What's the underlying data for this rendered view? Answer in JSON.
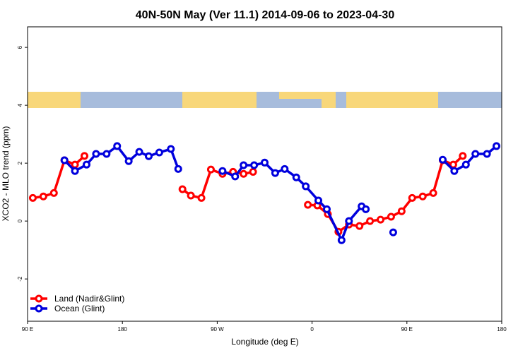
{
  "chart_data": {
    "type": "line",
    "title": "40N-50N May (Ver 11.1)   2014-09-06 to 2023-04-30",
    "x_label": "Longitude (deg E)",
    "y_label": "XCO2 - MLO trend (ppm)",
    "xlim": [
      90,
      540
    ],
    "xticks": [
      {
        "value": 90,
        "label": "90 E"
      },
      {
        "value": 180,
        "label": "180"
      },
      {
        "value": 270,
        "label": "90 W"
      },
      {
        "value": 360,
        "label": "0"
      },
      {
        "value": 450,
        "label": "90 E"
      },
      {
        "value": 540,
        "label": "180"
      }
    ],
    "ylim": [
      -3.46,
      6.71
    ],
    "yticks": [
      -2,
      0,
      2,
      4,
      6
    ],
    "legend": "bottom-left",
    "series": [
      {
        "name": "Land (Nadir&Glint)",
        "color": "#ff0000",
        "x": [
          95,
          105,
          115,
          125,
          135,
          144,
          null,
          237,
          245,
          255,
          264,
          275,
          285,
          295,
          304,
          null,
          356,
          365,
          375,
          385,
          395,
          405,
          415,
          425,
          435,
          445,
          455,
          465,
          475,
          484,
          494,
          503
        ],
        "values": [
          0.8,
          0.85,
          0.97,
          2.1,
          1.95,
          2.25,
          null,
          1.1,
          0.88,
          0.8,
          1.78,
          1.63,
          1.7,
          1.63,
          1.7,
          null,
          0.56,
          0.54,
          0.24,
          -0.37,
          -0.12,
          -0.17,
          0,
          0.05,
          0.15,
          0.34,
          0.8,
          0.85,
          0.97,
          2.1,
          1.95,
          2.25
        ]
      },
      {
        "name": "Ocean (Glint)",
        "color": "#0000dd",
        "x": [
          125,
          135,
          146,
          155,
          165,
          175,
          186,
          196,
          205,
          215,
          226,
          233,
          null,
          275,
          287,
          295,
          305,
          315,
          325,
          334,
          345,
          354,
          366,
          374,
          388,
          395,
          407,
          411,
          null,
          437,
          null,
          484,
          495,
          506,
          515,
          526,
          535
        ],
        "values": [
          2.1,
          1.73,
          1.95,
          2.32,
          2.32,
          2.59,
          2.07,
          2.39,
          2.24,
          2.37,
          2.49,
          1.8,
          null,
          1.73,
          1.54,
          1.93,
          1.93,
          2.02,
          1.66,
          1.8,
          1.51,
          1.2,
          0.71,
          0.41,
          -0.66,
          0,
          0.51,
          0.41,
          null,
          -0.39,
          null,
          2.12,
          1.73,
          1.95,
          2.32,
          2.32,
          2.59
        ]
      }
    ]
  }
}
